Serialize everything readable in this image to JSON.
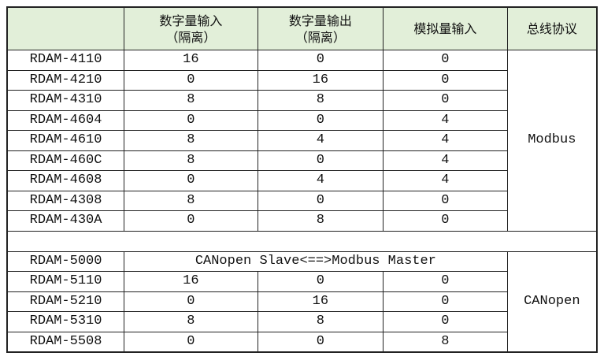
{
  "header": {
    "columns": [
      "",
      "数字量输入\n（隔离）",
      "数字量输出\n（隔离）",
      "模拟量输入",
      "总线协议"
    ],
    "background": "#e2efd9"
  },
  "modbus_group": {
    "protocol": "Modbus",
    "rows": [
      [
        "RDAM-4110",
        "16",
        "0",
        "0"
      ],
      [
        "RDAM-4210",
        "0",
        "16",
        "0"
      ],
      [
        "RDAM-4310",
        "8",
        "8",
        "0"
      ],
      [
        "RDAM-4604",
        "0",
        "0",
        "4"
      ],
      [
        "RDAM-4610",
        "8",
        "4",
        "4"
      ],
      [
        "RDAM-460C",
        "8",
        "0",
        "4"
      ],
      [
        "RDAM-4608",
        "0",
        "4",
        "4"
      ],
      [
        "RDAM-4308",
        "8",
        "0",
        "0"
      ],
      [
        "RDAM-430A",
        "0",
        "8",
        "0"
      ]
    ]
  },
  "canopen_group": {
    "protocol": "CANopen",
    "gateway_row": {
      "model": "RDAM-5000",
      "description": "CANopen Slave<==>Modbus Master"
    },
    "rows": [
      [
        "RDAM-5110",
        "16",
        "0",
        "0"
      ],
      [
        "RDAM-5210",
        "0",
        "16",
        "0"
      ],
      [
        "RDAM-5310",
        "8",
        "8",
        "0"
      ],
      [
        "RDAM-5508",
        "0",
        "0",
        "8"
      ]
    ]
  }
}
